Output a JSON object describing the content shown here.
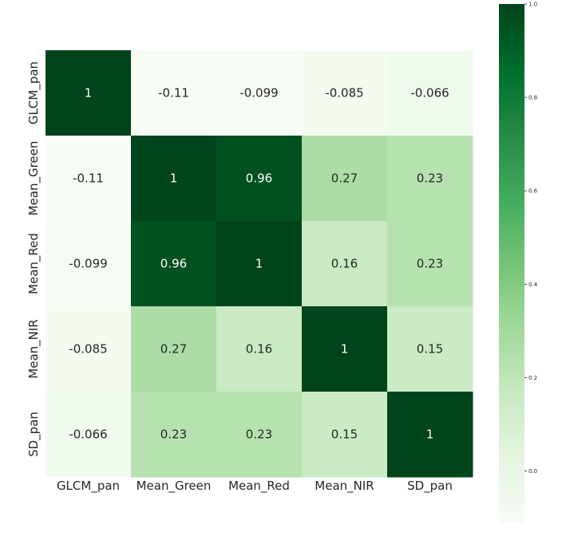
{
  "chart_data": {
    "type": "heatmap",
    "title": "",
    "xlabel": "",
    "ylabel": "",
    "x_categories": [
      "GLCM_pan",
      "Mean_Green",
      "Mean_Red",
      "Mean_NIR",
      "SD_pan"
    ],
    "y_categories": [
      "GLCM_pan",
      "Mean_Green",
      "Mean_Red",
      "Mean_NIR",
      "SD_pan"
    ],
    "matrix": [
      [
        1,
        -0.11,
        -0.099,
        -0.085,
        -0.066
      ],
      [
        -0.11,
        1,
        0.96,
        0.27,
        0.23
      ],
      [
        -0.099,
        0.96,
        1,
        0.16,
        0.23
      ],
      [
        -0.085,
        0.27,
        0.16,
        1,
        0.15
      ],
      [
        -0.066,
        0.23,
        0.23,
        0.15,
        1
      ]
    ],
    "annotations": [
      [
        "1",
        "-0.11",
        "-0.099",
        "-0.085",
        "-0.066"
      ],
      [
        "-0.11",
        "1",
        "0.96",
        "0.27",
        "0.23"
      ],
      [
        "-0.099",
        "0.96",
        "1",
        "0.16",
        "0.23"
      ],
      [
        "-0.085",
        "0.27",
        "0.16",
        "1",
        "0.15"
      ],
      [
        "-0.066",
        "0.23",
        "0.23",
        "0.15",
        "1"
      ]
    ],
    "colormap": "Greens",
    "color_range": [
      -0.11,
      1.0
    ],
    "colorbar": {
      "ticks": [
        1.0,
        0.8,
        0.6,
        0.4,
        0.2,
        0.0
      ],
      "tick_labels": [
        "1.0",
        "0.8",
        "0.6",
        "0.4",
        "0.2",
        "0.0"
      ]
    }
  }
}
